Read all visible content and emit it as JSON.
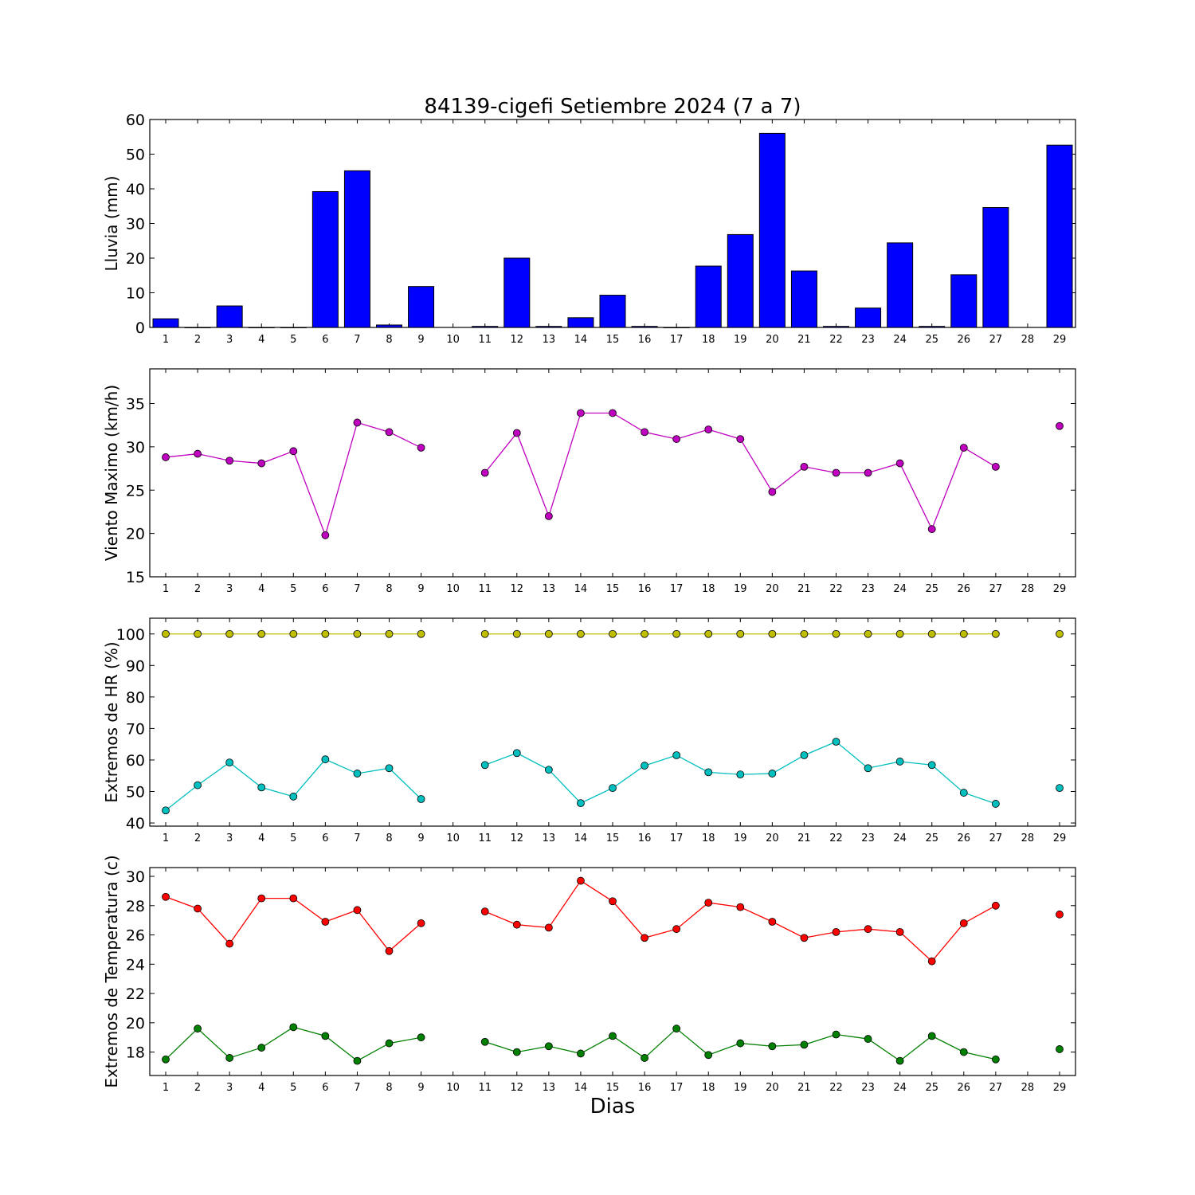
{
  "title": "84139-cigefi Setiembre 2024  (7 a 7)",
  "xlabel": "Dias",
  "colors": {
    "rain": "#0000ff",
    "wind": "#bf00bf",
    "hr_max": "#bfbf00",
    "hr_min": "#00bfbf",
    "tmax": "#ff0000",
    "tmin": "#008000"
  },
  "chart_data": [
    {
      "type": "bar",
      "ylabel": "Lluvia (mm)",
      "ylim": [
        0,
        60
      ],
      "yticks": [
        0,
        10,
        20,
        30,
        40,
        50,
        60
      ],
      "categories": [
        "1",
        "2",
        "3",
        "4",
        "5",
        "6",
        "7",
        "8",
        "9",
        "10",
        "11",
        "12",
        "13",
        "14",
        "15",
        "16",
        "17",
        "18",
        "19",
        "20",
        "21",
        "22",
        "23",
        "24",
        "25",
        "26",
        "27",
        "28",
        "29"
      ],
      "series": [
        {
          "color": "#0000ff",
          "values": [
            2.5,
            0,
            6.2,
            0,
            0,
            39.2,
            45.2,
            0.7,
            11.8,
            null,
            0.3,
            20,
            0.3,
            2.8,
            9.3,
            0.3,
            0,
            17.7,
            26.8,
            56,
            16.3,
            0.3,
            5.6,
            24.4,
            0.3,
            15.2,
            34.6,
            null,
            52.6
          ]
        }
      ]
    },
    {
      "type": "line",
      "ylabel": "Viento Maximo (km/h)",
      "ylim": [
        15,
        39
      ],
      "yticks": [
        15,
        20,
        25,
        30,
        35
      ],
      "categories": [
        "1",
        "2",
        "3",
        "4",
        "5",
        "6",
        "7",
        "8",
        "9",
        "10",
        "11",
        "12",
        "13",
        "14",
        "15",
        "16",
        "17",
        "18",
        "19",
        "20",
        "21",
        "22",
        "23",
        "24",
        "25",
        "26",
        "27",
        "28",
        "29"
      ],
      "series": [
        {
          "color": "#bf00bf",
          "values": [
            28.8,
            29.2,
            28.4,
            28.1,
            29.5,
            19.8,
            32.8,
            31.7,
            29.9,
            null,
            27.0,
            31.6,
            22.0,
            33.9,
            33.9,
            31.7,
            30.9,
            32.0,
            30.9,
            24.8,
            27.7,
            27.0,
            27.0,
            28.1,
            20.5,
            29.9,
            27.7,
            null,
            32.4
          ]
        }
      ]
    },
    {
      "type": "line",
      "ylabel": "Extremos de HR (%)",
      "ylim": [
        39,
        105
      ],
      "yticks": [
        40,
        50,
        60,
        70,
        80,
        90,
        100
      ],
      "categories": [
        "1",
        "2",
        "3",
        "4",
        "5",
        "6",
        "7",
        "8",
        "9",
        "10",
        "11",
        "12",
        "13",
        "14",
        "15",
        "16",
        "17",
        "18",
        "19",
        "20",
        "21",
        "22",
        "23",
        "24",
        "25",
        "26",
        "27",
        "28",
        "29"
      ],
      "series": [
        {
          "color": "#bfbf00",
          "values": [
            100,
            100,
            100,
            100,
            100,
            100,
            100,
            100,
            100,
            null,
            100,
            100,
            100,
            100,
            100,
            100,
            100,
            100,
            100,
            100,
            100,
            100,
            100,
            100,
            100,
            100,
            100,
            null,
            100
          ]
        },
        {
          "color": "#00bfbf",
          "values": [
            44,
            52,
            59.2,
            51.3,
            48.4,
            60.2,
            55.7,
            57.4,
            47.6,
            null,
            58.4,
            62.2,
            56.9,
            46.3,
            51.1,
            58.2,
            61.5,
            56.1,
            55.4,
            55.7,
            61.5,
            65.8,
            57.4,
            59.5,
            58.4,
            49.6,
            46.1,
            null,
            51.1
          ]
        }
      ]
    },
    {
      "type": "line",
      "ylabel": "Extremos de Temperatura (c)",
      "ylim": [
        16.4,
        30.6
      ],
      "yticks": [
        18,
        20,
        22,
        24,
        26,
        28,
        30
      ],
      "categories": [
        "1",
        "2",
        "3",
        "4",
        "5",
        "6",
        "7",
        "8",
        "9",
        "10",
        "11",
        "12",
        "13",
        "14",
        "15",
        "16",
        "17",
        "18",
        "19",
        "20",
        "21",
        "22",
        "23",
        "24",
        "25",
        "26",
        "27",
        "28",
        "29"
      ],
      "series": [
        {
          "color": "#ff0000",
          "values": [
            28.6,
            27.8,
            25.4,
            28.5,
            28.5,
            26.9,
            27.7,
            24.9,
            26.8,
            null,
            27.6,
            26.7,
            26.5,
            29.7,
            28.3,
            25.8,
            26.4,
            28.2,
            27.9,
            26.9,
            25.8,
            26.2,
            26.4,
            26.2,
            24.2,
            26.8,
            28.0,
            null,
            27.4
          ]
        },
        {
          "color": "#008000",
          "values": [
            17.5,
            19.6,
            17.6,
            18.3,
            19.7,
            19.1,
            17.4,
            18.6,
            19.0,
            null,
            18.7,
            18.0,
            18.4,
            17.9,
            19.1,
            17.6,
            19.6,
            17.8,
            18.6,
            18.4,
            18.5,
            19.2,
            18.9,
            17.4,
            19.1,
            18.0,
            17.5,
            null,
            18.2
          ]
        }
      ]
    }
  ]
}
